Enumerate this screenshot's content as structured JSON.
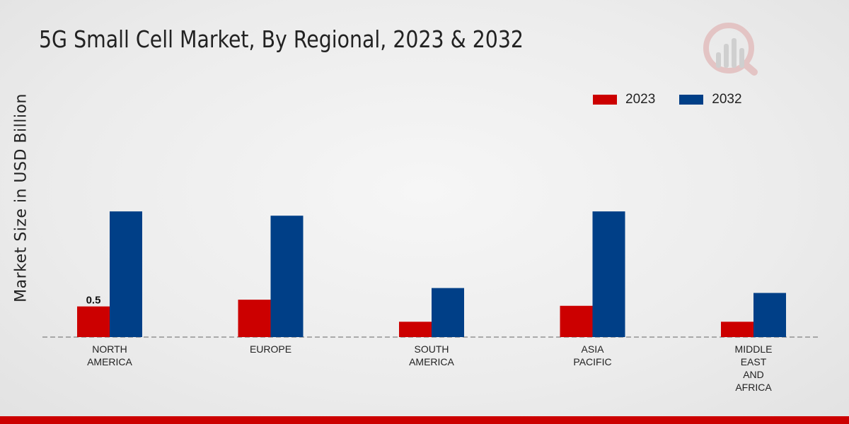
{
  "chart_data": {
    "type": "bar",
    "title": "5G Small Cell Market, By Regional, 2023 & 2032",
    "xlabel": "",
    "ylabel": "Market Size in USD Billion",
    "categories": [
      [
        "NORTH",
        "AMERICA"
      ],
      [
        "EUROPE"
      ],
      [
        "SOUTH",
        "AMERICA"
      ],
      [
        "ASIA",
        "PACIFIC"
      ],
      [
        "MIDDLE",
        "EAST",
        "AND",
        "AFRICA"
      ]
    ],
    "series": [
      {
        "name": "2023",
        "color": "#cc0000",
        "values": [
          0.5,
          0.61,
          0.25,
          0.51,
          0.25
        ]
      },
      {
        "name": "2032",
        "color": "#003f87",
        "values": [
          2.05,
          1.98,
          0.8,
          2.05,
          0.72
        ]
      }
    ],
    "data_labels": [
      {
        "series": 0,
        "index": 0,
        "text": "0.5"
      }
    ],
    "ylim": [
      0,
      4.0
    ],
    "grid": false,
    "legend_position": "top-right"
  }
}
